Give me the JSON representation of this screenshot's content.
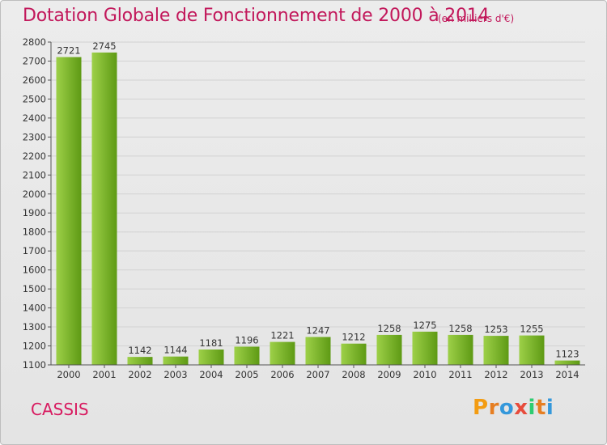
{
  "header": {
    "title": "Dotation Globale de Fonctionnement de 2000 à 2014",
    "unit": "(en milliers d'€)"
  },
  "footer": {
    "city": "CASSIS",
    "logo": [
      "P",
      "r",
      "o",
      "x",
      "i",
      "t",
      "i"
    ]
  },
  "colors": {
    "title": "#c2185b",
    "bar_light": "#9dd048",
    "bar_dark": "#5e9a14",
    "logo": [
      "#f39c12",
      "#e67e22",
      "#3498db",
      "#e74c3c",
      "#2ecc71",
      "#e67e22",
      "#3498db"
    ]
  },
  "chart_data": {
    "type": "bar",
    "title": "Dotation Globale de Fonctionnement de 2000 à 2014",
    "subtitle": "(en milliers d'€)",
    "xlabel": "",
    "ylabel": "",
    "ylim": [
      1100,
      2800
    ],
    "ytick_step": 100,
    "grid": true,
    "categories": [
      "2000",
      "2001",
      "2002",
      "2003",
      "2004",
      "2005",
      "2006",
      "2007",
      "2008",
      "2009",
      "2010",
      "2011",
      "2012",
      "2013",
      "2014"
    ],
    "values": [
      2721,
      2745,
      1142,
      1144,
      1181,
      1196,
      1221,
      1247,
      1212,
      1258,
      1275,
      1258,
      1253,
      1255,
      1123
    ]
  }
}
